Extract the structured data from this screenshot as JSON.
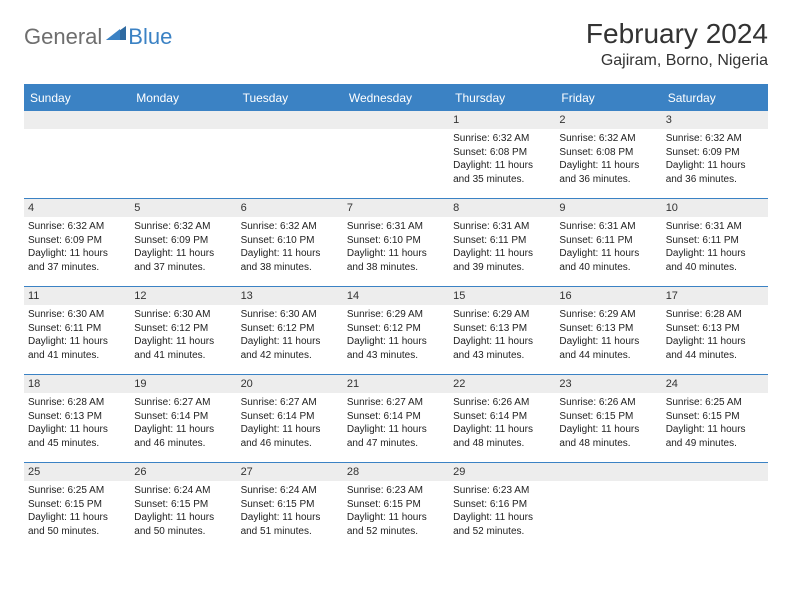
{
  "brand": {
    "part1": "General",
    "part2": "Blue"
  },
  "title": "February 2024",
  "location": "Gajiram, Borno, Nigeria",
  "colors": {
    "header_bg": "#3b82c4",
    "header_text": "#ffffff",
    "daynum_bg": "#ededed",
    "border": "#3b82c4",
    "text": "#222222",
    "logo_grey": "#6e6e6e",
    "logo_blue": "#3b82c4",
    "page_bg": "#ffffff"
  },
  "layout": {
    "columns": 7,
    "weeks": 5,
    "col_width_pct": 14.28,
    "font_family": "Arial",
    "cell_font_size": 10,
    "header_font_size": 12,
    "title_font_size": 28,
    "location_font_size": 16
  },
  "weekdays": [
    "Sunday",
    "Monday",
    "Tuesday",
    "Wednesday",
    "Thursday",
    "Friday",
    "Saturday"
  ],
  "weeks": [
    [
      {
        "day": "",
        "sunrise": "",
        "sunset": "",
        "daylight": ""
      },
      {
        "day": "",
        "sunrise": "",
        "sunset": "",
        "daylight": ""
      },
      {
        "day": "",
        "sunrise": "",
        "sunset": "",
        "daylight": ""
      },
      {
        "day": "",
        "sunrise": "",
        "sunset": "",
        "daylight": ""
      },
      {
        "day": "1",
        "sunrise": "Sunrise: 6:32 AM",
        "sunset": "Sunset: 6:08 PM",
        "daylight": "Daylight: 11 hours and 35 minutes."
      },
      {
        "day": "2",
        "sunrise": "Sunrise: 6:32 AM",
        "sunset": "Sunset: 6:08 PM",
        "daylight": "Daylight: 11 hours and 36 minutes."
      },
      {
        "day": "3",
        "sunrise": "Sunrise: 6:32 AM",
        "sunset": "Sunset: 6:09 PM",
        "daylight": "Daylight: 11 hours and 36 minutes."
      }
    ],
    [
      {
        "day": "4",
        "sunrise": "Sunrise: 6:32 AM",
        "sunset": "Sunset: 6:09 PM",
        "daylight": "Daylight: 11 hours and 37 minutes."
      },
      {
        "day": "5",
        "sunrise": "Sunrise: 6:32 AM",
        "sunset": "Sunset: 6:09 PM",
        "daylight": "Daylight: 11 hours and 37 minutes."
      },
      {
        "day": "6",
        "sunrise": "Sunrise: 6:32 AM",
        "sunset": "Sunset: 6:10 PM",
        "daylight": "Daylight: 11 hours and 38 minutes."
      },
      {
        "day": "7",
        "sunrise": "Sunrise: 6:31 AM",
        "sunset": "Sunset: 6:10 PM",
        "daylight": "Daylight: 11 hours and 38 minutes."
      },
      {
        "day": "8",
        "sunrise": "Sunrise: 6:31 AM",
        "sunset": "Sunset: 6:11 PM",
        "daylight": "Daylight: 11 hours and 39 minutes."
      },
      {
        "day": "9",
        "sunrise": "Sunrise: 6:31 AM",
        "sunset": "Sunset: 6:11 PM",
        "daylight": "Daylight: 11 hours and 40 minutes."
      },
      {
        "day": "10",
        "sunrise": "Sunrise: 6:31 AM",
        "sunset": "Sunset: 6:11 PM",
        "daylight": "Daylight: 11 hours and 40 minutes."
      }
    ],
    [
      {
        "day": "11",
        "sunrise": "Sunrise: 6:30 AM",
        "sunset": "Sunset: 6:11 PM",
        "daylight": "Daylight: 11 hours and 41 minutes."
      },
      {
        "day": "12",
        "sunrise": "Sunrise: 6:30 AM",
        "sunset": "Sunset: 6:12 PM",
        "daylight": "Daylight: 11 hours and 41 minutes."
      },
      {
        "day": "13",
        "sunrise": "Sunrise: 6:30 AM",
        "sunset": "Sunset: 6:12 PM",
        "daylight": "Daylight: 11 hours and 42 minutes."
      },
      {
        "day": "14",
        "sunrise": "Sunrise: 6:29 AM",
        "sunset": "Sunset: 6:12 PM",
        "daylight": "Daylight: 11 hours and 43 minutes."
      },
      {
        "day": "15",
        "sunrise": "Sunrise: 6:29 AM",
        "sunset": "Sunset: 6:13 PM",
        "daylight": "Daylight: 11 hours and 43 minutes."
      },
      {
        "day": "16",
        "sunrise": "Sunrise: 6:29 AM",
        "sunset": "Sunset: 6:13 PM",
        "daylight": "Daylight: 11 hours and 44 minutes."
      },
      {
        "day": "17",
        "sunrise": "Sunrise: 6:28 AM",
        "sunset": "Sunset: 6:13 PM",
        "daylight": "Daylight: 11 hours and 44 minutes."
      }
    ],
    [
      {
        "day": "18",
        "sunrise": "Sunrise: 6:28 AM",
        "sunset": "Sunset: 6:13 PM",
        "daylight": "Daylight: 11 hours and 45 minutes."
      },
      {
        "day": "19",
        "sunrise": "Sunrise: 6:27 AM",
        "sunset": "Sunset: 6:14 PM",
        "daylight": "Daylight: 11 hours and 46 minutes."
      },
      {
        "day": "20",
        "sunrise": "Sunrise: 6:27 AM",
        "sunset": "Sunset: 6:14 PM",
        "daylight": "Daylight: 11 hours and 46 minutes."
      },
      {
        "day": "21",
        "sunrise": "Sunrise: 6:27 AM",
        "sunset": "Sunset: 6:14 PM",
        "daylight": "Daylight: 11 hours and 47 minutes."
      },
      {
        "day": "22",
        "sunrise": "Sunrise: 6:26 AM",
        "sunset": "Sunset: 6:14 PM",
        "daylight": "Daylight: 11 hours and 48 minutes."
      },
      {
        "day": "23",
        "sunrise": "Sunrise: 6:26 AM",
        "sunset": "Sunset: 6:15 PM",
        "daylight": "Daylight: 11 hours and 48 minutes."
      },
      {
        "day": "24",
        "sunrise": "Sunrise: 6:25 AM",
        "sunset": "Sunset: 6:15 PM",
        "daylight": "Daylight: 11 hours and 49 minutes."
      }
    ],
    [
      {
        "day": "25",
        "sunrise": "Sunrise: 6:25 AM",
        "sunset": "Sunset: 6:15 PM",
        "daylight": "Daylight: 11 hours and 50 minutes."
      },
      {
        "day": "26",
        "sunrise": "Sunrise: 6:24 AM",
        "sunset": "Sunset: 6:15 PM",
        "daylight": "Daylight: 11 hours and 50 minutes."
      },
      {
        "day": "27",
        "sunrise": "Sunrise: 6:24 AM",
        "sunset": "Sunset: 6:15 PM",
        "daylight": "Daylight: 11 hours and 51 minutes."
      },
      {
        "day": "28",
        "sunrise": "Sunrise: 6:23 AM",
        "sunset": "Sunset: 6:15 PM",
        "daylight": "Daylight: 11 hours and 52 minutes."
      },
      {
        "day": "29",
        "sunrise": "Sunrise: 6:23 AM",
        "sunset": "Sunset: 6:16 PM",
        "daylight": "Daylight: 11 hours and 52 minutes."
      },
      {
        "day": "",
        "sunrise": "",
        "sunset": "",
        "daylight": ""
      },
      {
        "day": "",
        "sunrise": "",
        "sunset": "",
        "daylight": ""
      }
    ]
  ]
}
